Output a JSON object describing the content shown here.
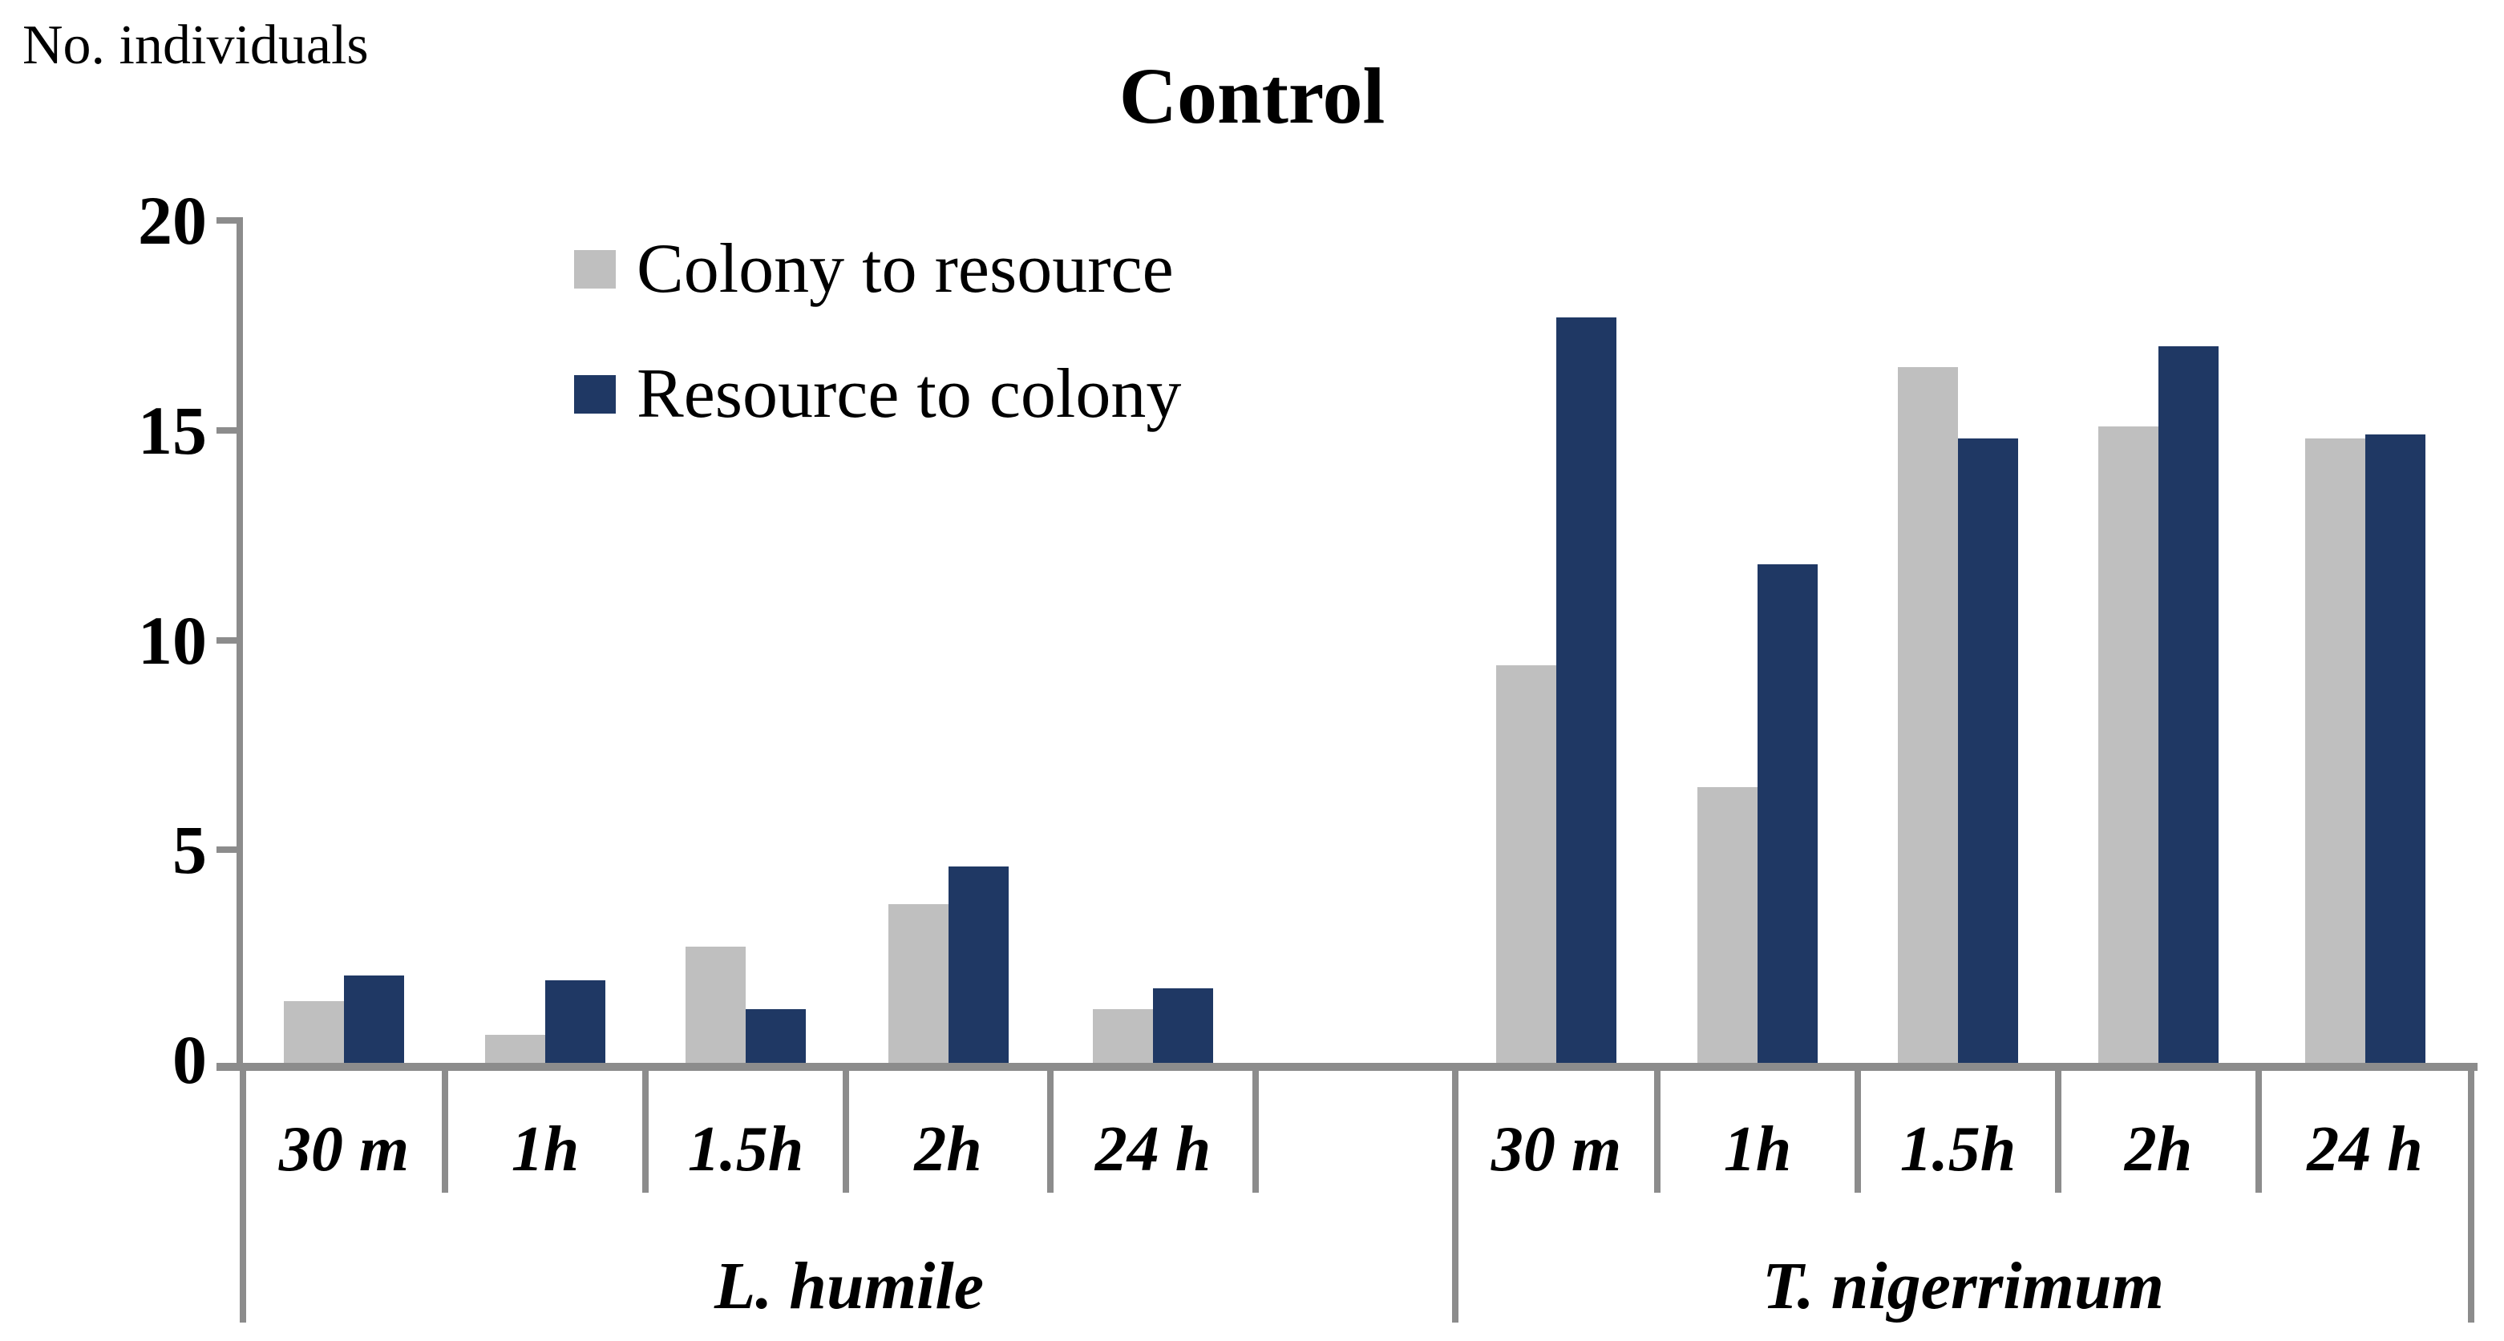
{
  "title": "Control",
  "ylabel": "No. individuals",
  "legend": [
    {
      "label": "Colony to resource",
      "color": "#BFBFBF"
    },
    {
      "label": "Resource to colony",
      "color": "#1F3864"
    }
  ],
  "chart_data": {
    "type": "bar",
    "title": "Control",
    "ylabel": "No. individuals",
    "xlabel": "",
    "ylim": [
      0,
      20
    ],
    "yticks": [
      0,
      5,
      10,
      15,
      20
    ],
    "grid": false,
    "legend_position": "top-left-inside",
    "groups": [
      {
        "label": "L. humile",
        "categories": [
          "30 m",
          "1h",
          "1.5h",
          "2h",
          "24 h"
        ],
        "series": [
          {
            "name": "Colony to resource",
            "values": [
              1.4,
              0.6,
              2.7,
              3.7,
              1.2
            ]
          },
          {
            "name": "Resource to colony",
            "values": [
              2.0,
              1.9,
              1.2,
              4.6,
              1.7
            ]
          }
        ]
      },
      {
        "label": "T. nigerrimum",
        "categories": [
          "30 m",
          "1h",
          "1.5h",
          "2h",
          "24 h"
        ],
        "series": [
          {
            "name": "Colony to resource",
            "values": [
              9.4,
              6.5,
              16.5,
              15.1,
              14.8
            ]
          },
          {
            "name": "Resource to colony",
            "values": [
              17.7,
              11.8,
              14.8,
              17.0,
              14.9
            ]
          }
        ]
      }
    ],
    "colors": {
      "colony_to_resource": "#BFBFBF",
      "resource_to_colony": "#1F3864",
      "axis": "#8C8C8C",
      "text": "#000000"
    }
  }
}
